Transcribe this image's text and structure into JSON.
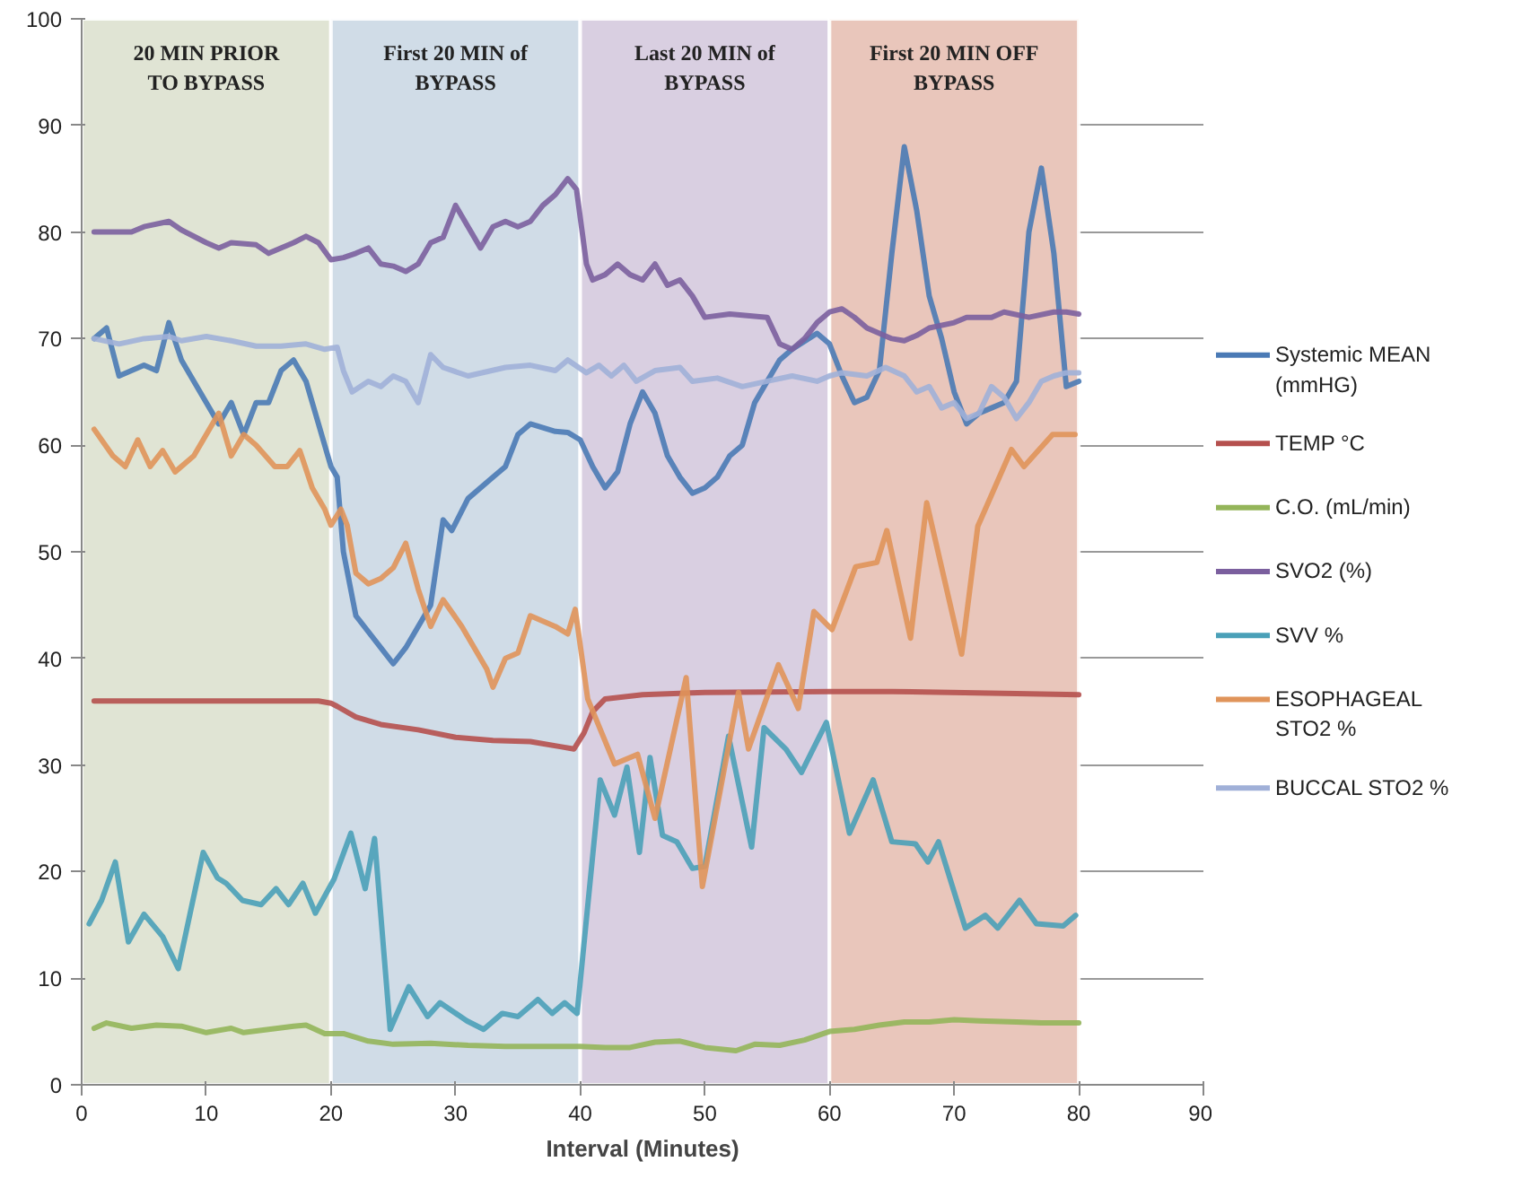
{
  "chart_data": {
    "type": "line",
    "xlabel": "Interval (Minutes)",
    "xlim": [
      0,
      90
    ],
    "xticks": [
      0,
      10,
      20,
      30,
      40,
      50,
      60,
      70,
      80,
      90
    ],
    "ylim": [
      0,
      100
    ],
    "yticks": [
      0,
      10,
      20,
      30,
      40,
      50,
      60,
      70,
      80,
      90,
      100
    ],
    "grid": "y",
    "legend": "right",
    "line_style": "solid",
    "marker": "none",
    "bands": [
      {
        "axis": "x",
        "from": 0,
        "to": 20,
        "label": "20 MIN PRIOR\nTO BYPASS",
        "color": "#e0e4d4"
      },
      {
        "axis": "x",
        "from": 20,
        "to": 40,
        "label": "First 20 MIN of\nBYPASS",
        "color": "#d0dce7"
      },
      {
        "axis": "x",
        "from": 40,
        "to": 60,
        "label": "Last 20 MIN of\nBYPASS",
        "color": "#d9cfe1"
      },
      {
        "axis": "x",
        "from": 60,
        "to": 80,
        "label": "First 20 MIN OFF\nBYPASS",
        "color": "#e9c6bb"
      }
    ],
    "series": [
      {
        "name": "Systemic MEAN\n(mmHG)",
        "color": "#4a7ab5",
        "x": [
          1,
          2,
          3,
          5,
          6,
          7,
          8,
          10,
          11,
          12,
          13,
          14,
          15,
          16,
          17,
          18,
          19,
          20,
          20.5,
          21,
          22,
          24,
          25,
          26,
          27,
          28,
          29,
          29.7,
          31,
          33,
          34,
          35,
          36,
          38,
          39,
          40,
          41,
          42,
          43,
          44,
          45,
          46,
          47,
          48,
          49,
          50,
          51,
          52,
          53,
          54,
          55,
          56,
          57,
          59,
          60,
          61,
          62,
          63,
          64,
          65,
          66,
          67,
          68,
          69,
          70,
          71,
          72,
          73,
          74,
          75,
          76,
          77,
          78,
          79,
          80
        ],
        "values": [
          70,
          71,
          66.5,
          67.5,
          67,
          71.5,
          68,
          64,
          62,
          64,
          61,
          64,
          64,
          67,
          68,
          66,
          62,
          58,
          57,
          50,
          44,
          41,
          39.5,
          41,
          43,
          45,
          53,
          52,
          55,
          57,
          58,
          61,
          62,
          61.3,
          61.2,
          60.5,
          58,
          56,
          57.5,
          62,
          65,
          63,
          59,
          57,
          55.5,
          56,
          57,
          59,
          60,
          64,
          66,
          68,
          69,
          70.5,
          69.5,
          66.5,
          64,
          64.5,
          67,
          78,
          88,
          82,
          74,
          70,
          65,
          62,
          63,
          63.5,
          64,
          66,
          80,
          86,
          78,
          65.5,
          66
        ]
      },
      {
        "name": "TEMP °C",
        "color": "#b5504e",
        "x": [
          1,
          10,
          19,
          20,
          20.5,
          22,
          24,
          27,
          30,
          33,
          36,
          38.5,
          39.5,
          40.3,
          41,
          42,
          45,
          50,
          60,
          65,
          75,
          80
        ],
        "values": [
          36,
          36,
          36,
          35.8,
          35.5,
          34.5,
          33.8,
          33.3,
          32.6,
          32.3,
          32.2,
          31.7,
          31.5,
          33,
          35,
          36.2,
          36.6,
          36.8,
          36.9,
          36.9,
          36.7,
          36.6
        ]
      },
      {
        "name": "C.O. (mL/min)",
        "color": "#94b55a",
        "x": [
          1,
          2,
          4,
          6,
          8,
          10,
          12,
          13,
          15,
          17,
          18,
          19.5,
          21,
          23,
          25,
          28,
          31,
          34,
          37,
          40,
          42,
          44,
          46,
          48,
          50,
          52.5,
          54,
          56,
          58,
          60,
          62,
          64,
          66,
          68,
          70,
          72,
          75,
          77,
          80
        ],
        "values": [
          5.3,
          5.8,
          5.3,
          5.6,
          5.5,
          4.9,
          5.3,
          4.9,
          5.2,
          5.5,
          5.6,
          4.8,
          4.8,
          4.1,
          3.8,
          3.9,
          3.7,
          3.6,
          3.6,
          3.6,
          3.5,
          3.5,
          4,
          4.1,
          3.5,
          3.2,
          3.8,
          3.7,
          4.2,
          5,
          5.2,
          5.6,
          5.9,
          5.9,
          6.1,
          6,
          5.9,
          5.8,
          5.8
        ]
      },
      {
        "name": "SVO2 (%)",
        "color": "#7b5f9e",
        "x": [
          1,
          4,
          5,
          7,
          8,
          10,
          11,
          12,
          14,
          15,
          17,
          18,
          19,
          20,
          21,
          22,
          23,
          24,
          25,
          26,
          27,
          28,
          29,
          30,
          31,
          32,
          33,
          34,
          35,
          36,
          37,
          38,
          39,
          39.7,
          40.5,
          41,
          42,
          43,
          44,
          45,
          46,
          47,
          48,
          49,
          50,
          52,
          55,
          56,
          57,
          58,
          59,
          60,
          61,
          62,
          63,
          64,
          65,
          66,
          67,
          68,
          70,
          71,
          73,
          74,
          76,
          78,
          79,
          80
        ],
        "values": [
          80,
          80,
          80.5,
          81,
          80.2,
          79,
          78.5,
          79,
          78.8,
          78,
          79,
          79.6,
          79,
          77.4,
          77.6,
          78,
          78.5,
          77,
          76.8,
          76.3,
          77,
          79,
          79.5,
          82.5,
          80.5,
          78.5,
          80.5,
          81,
          80.5,
          81,
          82.5,
          83.5,
          85,
          84,
          77,
          75.5,
          76,
          77,
          76,
          75.5,
          77,
          75,
          75.5,
          74,
          72,
          72.3,
          72,
          69.5,
          69,
          70,
          71.5,
          72.5,
          72.8,
          72,
          71,
          70.5,
          70,
          69.8,
          70.3,
          71,
          71.5,
          72,
          72,
          72.5,
          72,
          72.5,
          72.5,
          72.3
        ]
      },
      {
        "name": "SVV %",
        "color": "#4aa0b8",
        "x": [
          0.6,
          1.6,
          2.7,
          3.75,
          5,
          6.5,
          7.75,
          9.75,
          10.9,
          11.6,
          12.9,
          14.4,
          15.6,
          16.6,
          17.75,
          18.75,
          20.25,
          21.6,
          22.75,
          23.5,
          24.75,
          26.25,
          27.75,
          28.75,
          30.9,
          32.25,
          33.75,
          35,
          36.6,
          37.75,
          38.75,
          39.75,
          41.6,
          42.75,
          43.75,
          44.75,
          45.6,
          46.6,
          47.75,
          49,
          50,
          51.9,
          53.75,
          54.75,
          56.5,
          57.75,
          59.75,
          61.6,
          63.5,
          65,
          66.9,
          67.9,
          68.75,
          70.9,
          72.5,
          73.5,
          75.25,
          76.6,
          78.75,
          79.75
        ],
        "values": [
          15.1,
          17.3,
          20.9,
          13.4,
          16,
          13.9,
          10.9,
          21.8,
          19.4,
          18.9,
          17.3,
          16.9,
          18.4,
          16.9,
          18.9,
          16.1,
          19.3,
          23.6,
          18.4,
          23.1,
          5.2,
          9.2,
          6.4,
          7.7,
          6,
          5.2,
          6.7,
          6.4,
          8,
          6.7,
          7.7,
          6.7,
          28.6,
          25.3,
          29.8,
          21.8,
          30.7,
          23.4,
          22.8,
          20.3,
          20.5,
          32.7,
          22.3,
          33.5,
          31.5,
          29.3,
          34,
          23.6,
          28.6,
          22.8,
          22.6,
          20.9,
          22.8,
          14.7,
          15.9,
          14.7,
          17.3,
          15.1,
          14.9,
          15.9
        ]
      },
      {
        "name": "ESOPHAGEAL\nSTO2 %",
        "color": "#e0945a",
        "x": [
          1,
          2.5,
          3.5,
          4.5,
          5.5,
          6.5,
          7.5,
          9,
          10,
          11,
          12,
          13,
          14,
          15.5,
          16.5,
          17.5,
          18.5,
          19.5,
          20,
          20.8,
          21.3,
          22,
          23,
          24,
          25,
          26,
          27,
          28,
          29,
          30.5,
          31.5,
          32.5,
          33,
          34,
          35,
          36,
          37,
          38,
          39,
          39.6,
          40.6,
          42.75,
          44.6,
          46,
          48.5,
          49.8,
          52.7,
          53.5,
          55.9,
          57.5,
          58.75,
          60.2,
          62.1,
          63.8,
          64.6,
          66.5,
          67.8,
          70.6,
          71.9,
          74.6,
          75.6,
          77.9,
          79.7
        ],
        "values": [
          61.5,
          59,
          58,
          60.5,
          58,
          59.5,
          57.5,
          59,
          61,
          63,
          59,
          61,
          60,
          58,
          58,
          59.5,
          56,
          54,
          52.5,
          54,
          52.5,
          48,
          47,
          47.5,
          48.5,
          50.8,
          46.5,
          43,
          45.5,
          43,
          41,
          39,
          37.3,
          40,
          40.5,
          44,
          43.5,
          43,
          42.3,
          44.6,
          36.2,
          30.1,
          31,
          25,
          38.2,
          18.6,
          36.8,
          31.5,
          39.4,
          35.3,
          44.4,
          42.7,
          48.6,
          49,
          52,
          41.9,
          54.6,
          40.4,
          52.4,
          59.6,
          58,
          61,
          61
        ]
      },
      {
        "name": "BUCCAL STO2 %",
        "color": "#a0b0d8",
        "x": [
          1,
          3,
          5,
          7,
          8,
          10,
          12,
          14,
          16,
          18,
          19.5,
          20.5,
          21,
          21.7,
          23,
          24,
          25,
          26,
          27,
          28,
          29,
          31,
          34,
          36,
          38,
          39,
          40.5,
          41.5,
          42.5,
          43.5,
          44.5,
          46,
          48,
          49,
          51,
          53,
          55,
          57,
          59,
          60,
          61,
          63,
          64.5,
          66,
          67,
          68,
          69,
          70,
          71,
          72,
          73,
          74,
          75,
          76,
          77,
          78,
          79,
          80
        ],
        "values": [
          70,
          69.5,
          70,
          70.2,
          69.8,
          70.2,
          69.8,
          69.3,
          69.3,
          69.5,
          69,
          69.2,
          67,
          65,
          66,
          65.5,
          66.5,
          66,
          64,
          68.5,
          67.3,
          66.5,
          67.3,
          67.5,
          67,
          68,
          66.8,
          67.5,
          66.5,
          67.5,
          66,
          67,
          67.3,
          66,
          66.3,
          65.5,
          66,
          66.5,
          66,
          66.5,
          66.8,
          66.5,
          67.3,
          66.5,
          65,
          65.5,
          63.5,
          64,
          62.5,
          63,
          65.5,
          64.5,
          62.5,
          64,
          66,
          66.5,
          66.8,
          66.8
        ]
      }
    ]
  }
}
